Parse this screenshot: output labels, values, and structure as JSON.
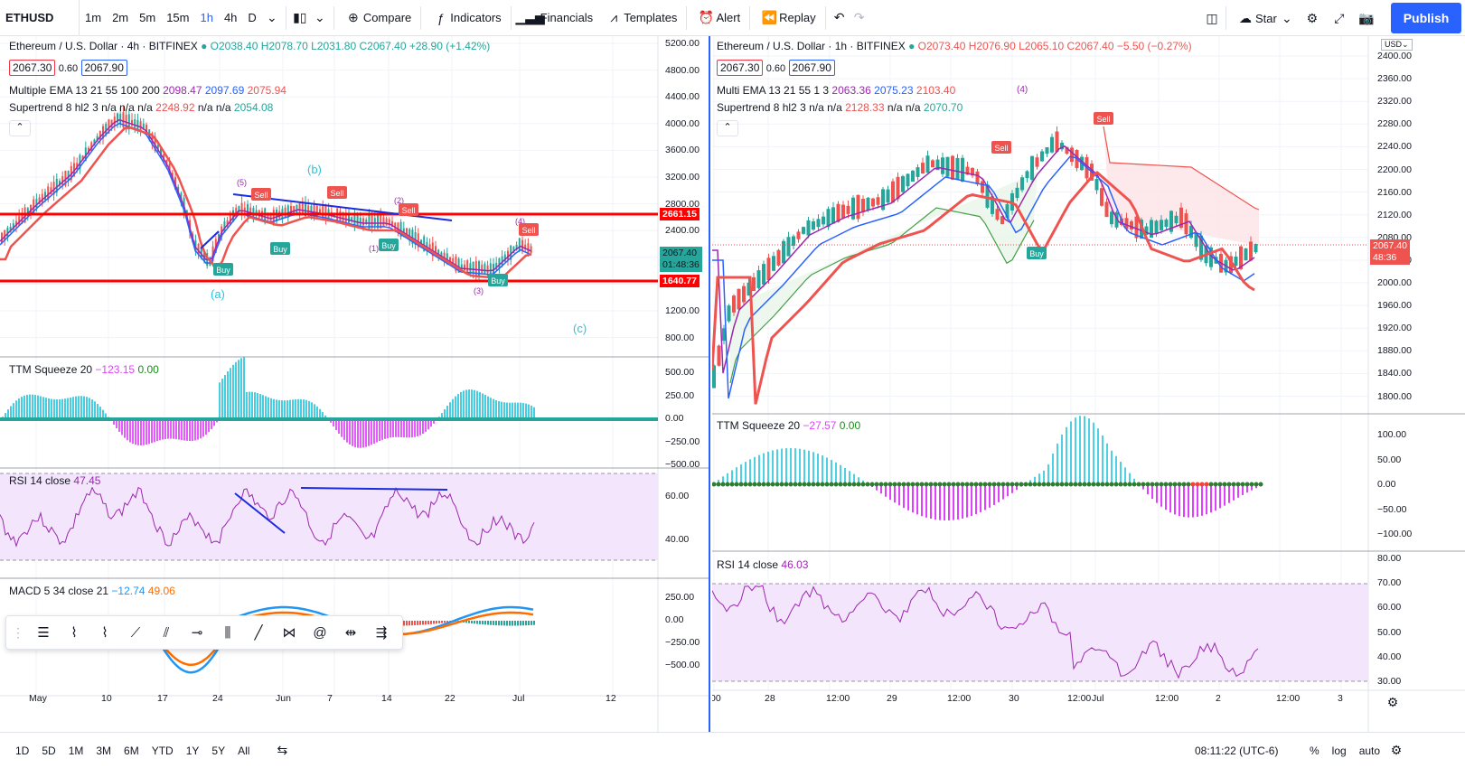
{
  "toolbar": {
    "symbol": "ETHUSD",
    "intervals": [
      "1m",
      "2m",
      "5m",
      "15m",
      "1h",
      "4h",
      "D"
    ],
    "active_interval": "1h",
    "compare": "Compare",
    "indicators": "Indicators",
    "financials": "Financials",
    "templates": "Templates",
    "alert": "Alert",
    "replay": "Replay",
    "layout_name": "Star",
    "publish": "Publish"
  },
  "left": {
    "title": "Ethereum / U.S. Dollar · 4h · BITFINEX",
    "ohlc": "O2038.40 H2078.70 L2031.80 C2067.40 +28.90 (+1.42%)",
    "bid": "2067.30",
    "spread": "0.60",
    "ask": "2067.90",
    "ema_label": "Multiple EMA 13 21 55 100 200",
    "ema_vals": [
      "2098.47",
      "2097.69",
      "2075.94"
    ],
    "st_label": "Supertrend 8 hl2 3  n/a n/a n/a",
    "st_vals": [
      "2248.92",
      "n/a n/a",
      "2054.08"
    ],
    "price_ticks": [
      "5200.00",
      "4800.00",
      "4400.00",
      "4000.00",
      "3600.00",
      "3200.00",
      "2800.00",
      "2400.00",
      "2000.00",
      "1600.00",
      "1200.00",
      "800.00"
    ],
    "level_high": "2661.15",
    "level_low": "1640.77",
    "last_price": "2067.40",
    "countdown": "01:48:36",
    "ttm_label": "TTM Squeeze 20",
    "ttm_vals": [
      "−123.15",
      "0.00"
    ],
    "ttm_ticks": [
      "500.00",
      "250.00",
      "0.00",
      "−250.00",
      "−500.00"
    ],
    "rsi_label": "RSI 14 close",
    "rsi_val": "47.45",
    "rsi_ticks": [
      "60.00",
      "40.00"
    ],
    "macd_label": "MACD 5 34 close 21",
    "macd_vals": [
      "−12.74",
      "49.06"
    ],
    "macd_ticks": [
      "250.00",
      "0.00",
      "−250.00",
      "−500.00"
    ],
    "time_ticks": [
      "May",
      "10",
      "17",
      "24",
      "Jun",
      "7",
      "14",
      "22",
      "Jul",
      "12"
    ],
    "wave_labels": [
      "(a)",
      "(b)",
      "(c)",
      "(5)",
      "(2)",
      "(4)",
      "(3)",
      "(1)"
    ],
    "signals": {
      "buy": "Buy",
      "sell": "Sell"
    }
  },
  "right": {
    "title": "Ethereum / U.S. Dollar · 1h · BITFINEX",
    "ohlc": "O2073.40 H2076.90 L2065.10 C2067.40 −5.50 (−0.27%)",
    "bid": "2067.30",
    "spread": "0.60",
    "ask": "2067.90",
    "ema_label": "Multi EMA 13 21 55 1 3",
    "ema_vals": [
      "2063.36",
      "2075.23",
      "2103.40"
    ],
    "st_label": "Supertrend 8 hl2 3  n/a n/a",
    "st_vals": [
      "2128.33",
      "n/a n/a",
      "2070.70"
    ],
    "price_ticks": [
      "2400.00",
      "2360.00",
      "2320.00",
      "2280.00",
      "2240.00",
      "2200.00",
      "2160.00",
      "2120.00",
      "2080.00",
      "2040.00",
      "2000.00",
      "1960.00",
      "1920.00",
      "1880.00",
      "1840.00",
      "1800.00"
    ],
    "currency": "USD",
    "last_price": "2067.40",
    "countdown": "48:36",
    "ttm_label": "TTM Squeeze 20",
    "ttm_vals": [
      "−27.57",
      "0.00"
    ],
    "ttm_ticks": [
      "100.00",
      "50.00",
      "0.00",
      "−50.00",
      "−100.00"
    ],
    "rsi_label": "RSI 14 close",
    "rsi_val": "46.03",
    "rsi_ticks": [
      "80.00",
      "70.00",
      "60.00",
      "50.00",
      "40.00",
      "30.00"
    ],
    "time_ticks": [
      "00",
      "28",
      "12:00",
      "29",
      "12:00",
      "30",
      "12:00",
      "Jul",
      "12:00",
      "2",
      "12:00",
      "3"
    ],
    "wave_label": "(4)"
  },
  "bottom": {
    "ranges": [
      "1D",
      "5D",
      "1M",
      "3M",
      "6M",
      "YTD",
      "1Y",
      "5Y",
      "All"
    ],
    "clock": "08:11:22 (UTC-6)",
    "percent": "%",
    "log": "log",
    "auto": "auto"
  },
  "colors": {
    "up": "#26a69a",
    "down": "#ef5350",
    "accent": "#2962ff",
    "level": "#ff0000",
    "rsi": "#9c27b0"
  }
}
